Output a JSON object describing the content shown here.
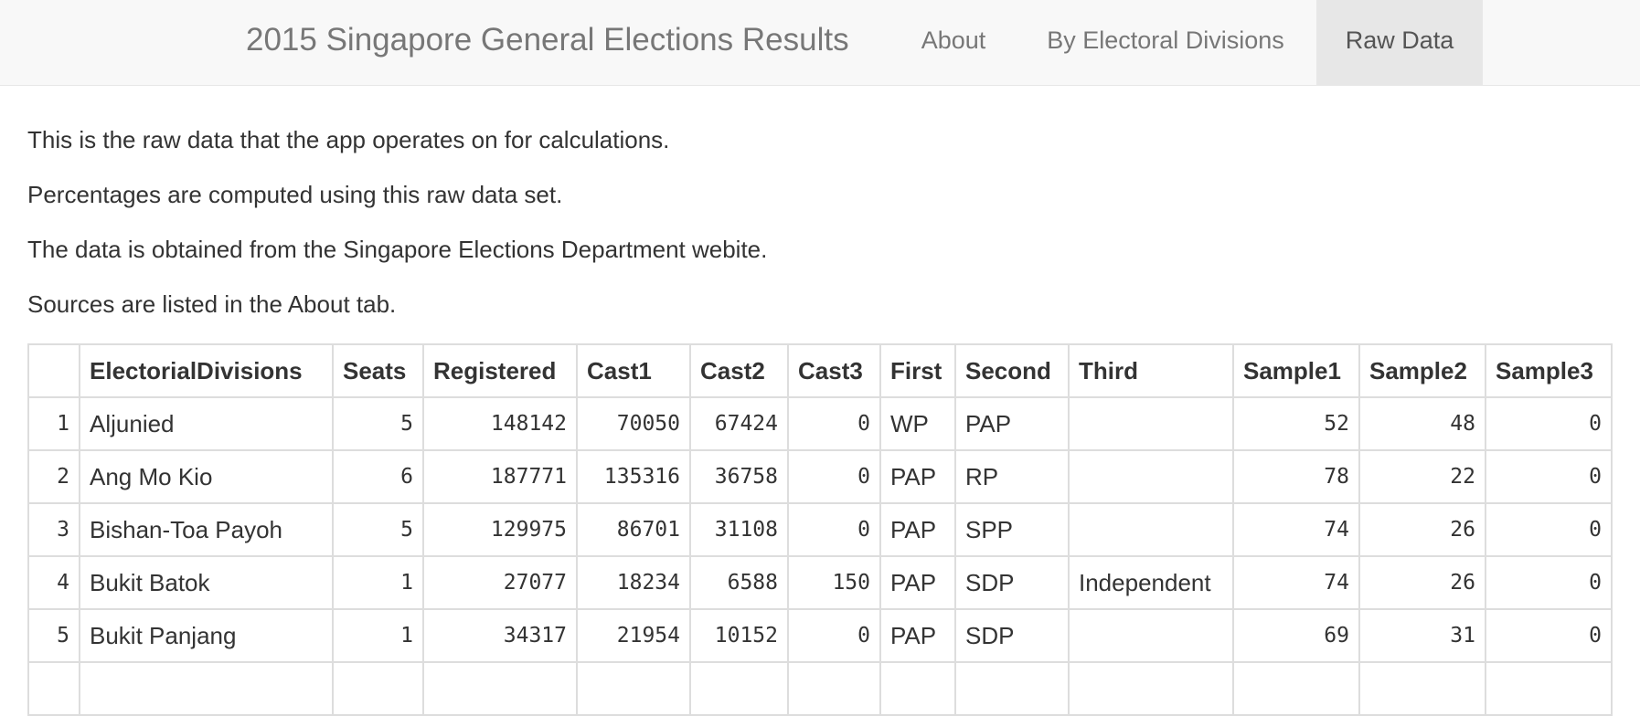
{
  "navbar": {
    "brand": "2015 Singapore General Elections Results",
    "tabs": [
      {
        "label": "About",
        "active": false
      },
      {
        "label": "By Electoral Divisions",
        "active": false
      },
      {
        "label": "Raw Data",
        "active": true
      }
    ]
  },
  "intro": [
    "This is the raw data that the app operates on for calculations.",
    "Percentages are computed using this raw data set.",
    "The data is obtained from the Singapore Elections Department webite.",
    "Sources are listed in the About tab."
  ],
  "table": {
    "headers": [
      "",
      "ElectorialDivisions",
      "Seats",
      "Registered",
      "Cast1",
      "Cast2",
      "Cast3",
      "First",
      "Second",
      "Third",
      "Sample1",
      "Sample2",
      "Sample3"
    ],
    "rows": [
      [
        "1",
        "Aljunied",
        "5",
        "148142",
        "70050",
        "67424",
        "0",
        "WP",
        "PAP",
        "",
        "52",
        "48",
        "0"
      ],
      [
        "2",
        "Ang Mo Kio",
        "6",
        "187771",
        "135316",
        "36758",
        "0",
        "PAP",
        "RP",
        "",
        "78",
        "22",
        "0"
      ],
      [
        "3",
        "Bishan-Toa Payoh",
        "5",
        "129975",
        "86701",
        "31108",
        "0",
        "PAP",
        "SPP",
        "",
        "74",
        "26",
        "0"
      ],
      [
        "4",
        "Bukit Batok",
        "1",
        "27077",
        "18234",
        "6588",
        "150",
        "PAP",
        "SDP",
        "Independent",
        "74",
        "26",
        "0"
      ],
      [
        "5",
        "Bukit Panjang",
        "1",
        "34317",
        "21954",
        "10152",
        "0",
        "PAP",
        "SDP",
        "",
        "69",
        "31",
        "0"
      ]
    ]
  },
  "colors": {
    "navbar_bg": "#f8f8f8",
    "active_tab_bg": "#e7e7e7",
    "border": "#dddddd"
  }
}
